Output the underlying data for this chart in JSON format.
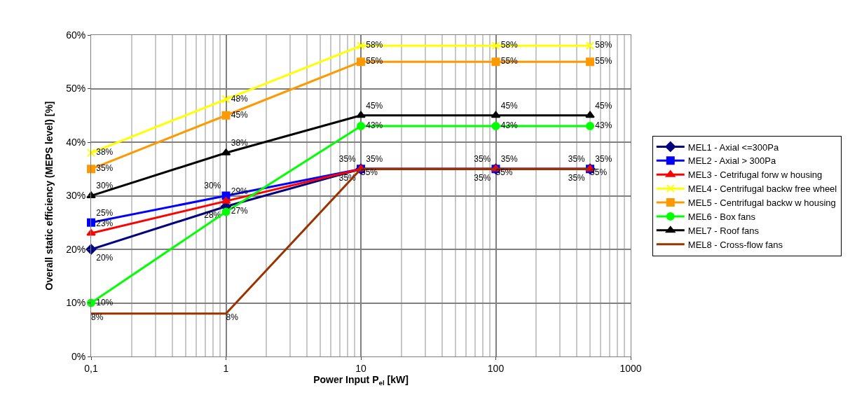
{
  "chart_data": {
    "type": "line",
    "xlabel": "Power Input P$_{el}$ [kW]",
    "ylabel": "Overall static efficiency (MEPS level) [%]",
    "x": [
      0.1,
      1,
      10,
      100,
      500
    ],
    "log": "x",
    "grid": true,
    "legend": "right",
    "xlim": [
      0.1,
      1000
    ],
    "xticks": [
      {
        "value": 0.1,
        "label": "0,1"
      },
      1,
      10,
      100,
      1000
    ],
    "ylim": [
      0,
      60
    ],
    "yticks": [
      {
        "value": 0,
        "label": "0%"
      },
      {
        "value": 10,
        "label": "10%"
      },
      {
        "value": 20,
        "label": "20%"
      },
      {
        "value": 30,
        "label": "30%"
      },
      {
        "value": 40,
        "label": "40%"
      },
      {
        "value": 50,
        "label": "50%"
      },
      {
        "value": 60,
        "label": "60%"
      }
    ],
    "series": [
      {
        "name": "MEL1 - Axial <=300Pa",
        "color": "#000080",
        "marker": "diamond",
        "values": [
          20,
          28,
          35,
          35,
          35
        ],
        "value_labels": [
          "20%",
          "28%",
          "35%",
          "35%",
          "35%"
        ]
      },
      {
        "name": "MEL2 - Axial > 300Pa",
        "color": "#0000ff",
        "marker": "square",
        "values": [
          25,
          30,
          35,
          35,
          35
        ],
        "value_labels": [
          "25%",
          "30%",
          "35%",
          "35%",
          "35%"
        ]
      },
      {
        "name": "MEL3 - Cetrifugal forw w housing",
        "color": "#ff0000",
        "marker": "triangle",
        "values": [
          23,
          29,
          35,
          35,
          35
        ],
        "value_labels": [
          "23%",
          "29%",
          "35%",
          "35%",
          "35%"
        ]
      },
      {
        "name": "MEL4 - Centrifugal backw free wheel",
        "color": "#ffff00",
        "marker": "cross",
        "values": [
          38,
          48,
          58,
          58,
          58
        ],
        "value_labels": [
          "38%",
          "48%",
          "58%",
          "58%",
          "58%"
        ]
      },
      {
        "name": "MEL5 - Centrifugal backw w housing",
        "color": "#ff9900",
        "marker": "square",
        "values": [
          35,
          45,
          55,
          55,
          55
        ],
        "value_labels": [
          "35%",
          "45%",
          "55%",
          "55%",
          "55%"
        ]
      },
      {
        "name": "MEL6 - Box fans",
        "color": "#00ff00",
        "marker": "circle",
        "values": [
          10,
          27,
          43,
          43,
          43
        ],
        "value_labels": [
          "10%",
          "27%",
          "43%",
          "43%",
          "43%"
        ]
      },
      {
        "name": "MEL7 - Roof fans",
        "color": "#000000",
        "marker": "triangle",
        "values": [
          30,
          38,
          45,
          45,
          45
        ],
        "value_labels": [
          "30%",
          "38%",
          "45%",
          "45%",
          "45%"
        ]
      },
      {
        "name": "MEL8 - Cross-flow fans",
        "color": "#993300",
        "marker": "none",
        "values": [
          8,
          8,
          35,
          35,
          35
        ],
        "value_labels": [
          "8%",
          "8%",
          "35%",
          "35%",
          "35%"
        ]
      }
    ]
  }
}
